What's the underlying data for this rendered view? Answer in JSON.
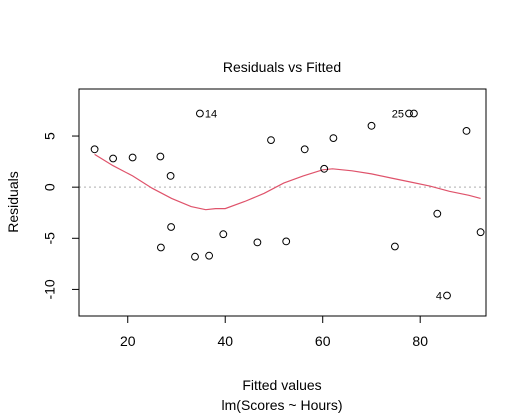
{
  "chart_data": {
    "type": "scatter",
    "title": "Residuals vs Fitted",
    "xlabel": "Fitted values",
    "subtitle": "lm(Scores ~ Hours)",
    "ylabel": "Residuals",
    "xlim": [
      10,
      93.5
    ],
    "ylim": [
      -12.6,
      9.6
    ],
    "x_ticks": [
      20,
      40,
      60,
      80
    ],
    "y_ticks": [
      -10,
      -5,
      0,
      5
    ],
    "grid": false,
    "legend": "none",
    "colors": {
      "points": "#000000",
      "smooth": "#DF536B",
      "reference": "#BEBEBE"
    },
    "points": [
      {
        "x": 13.2,
        "y": 3.7
      },
      {
        "x": 17.0,
        "y": 2.8
      },
      {
        "x": 21.0,
        "y": 2.9
      },
      {
        "x": 26.7,
        "y": 3.0
      },
      {
        "x": 26.8,
        "y": -5.9
      },
      {
        "x": 28.8,
        "y": 1.1
      },
      {
        "x": 28.9,
        "y": -3.9
      },
      {
        "x": 33.8,
        "y": -6.8
      },
      {
        "x": 34.8,
        "y": 7.2
      },
      {
        "x": 36.7,
        "y": -6.7
      },
      {
        "x": 39.6,
        "y": -4.6
      },
      {
        "x": 46.6,
        "y": -5.4
      },
      {
        "x": 49.4,
        "y": 4.6
      },
      {
        "x": 52.5,
        "y": -5.3
      },
      {
        "x": 56.3,
        "y": 3.7
      },
      {
        "x": 60.3,
        "y": 1.8
      },
      {
        "x": 62.2,
        "y": 4.8
      },
      {
        "x": 70.0,
        "y": 6.0
      },
      {
        "x": 74.8,
        "y": -5.8
      },
      {
        "x": 77.7,
        "y": 7.2
      },
      {
        "x": 78.7,
        "y": 7.2
      },
      {
        "x": 83.5,
        "y": -2.6
      },
      {
        "x": 85.5,
        "y": -10.6
      },
      {
        "x": 89.5,
        "y": 5.5
      },
      {
        "x": 92.4,
        "y": -4.4
      }
    ],
    "smooth_line": {
      "x": [
        13.2,
        17,
        21,
        25,
        29,
        33,
        36,
        38,
        40,
        44,
        48,
        52,
        56,
        60,
        62,
        66,
        70,
        74,
        78,
        82,
        86,
        90,
        92.4
      ],
      "y": [
        3.2,
        2.1,
        1.1,
        -0.1,
        -1.1,
        -1.9,
        -2.2,
        -2.1,
        -2.1,
        -1.4,
        -0.6,
        0.4,
        1.1,
        1.7,
        1.8,
        1.6,
        1.3,
        0.9,
        0.5,
        0.1,
        -0.4,
        -0.8,
        -1.1
      ]
    },
    "reference_line": {
      "y": 0
    },
    "point_labels": [
      {
        "text": "14",
        "x": 34.8,
        "y": 7.2,
        "side": "right"
      },
      {
        "text": "25",
        "x": 77.7,
        "y": 7.2,
        "side": "left"
      },
      {
        "text": "4",
        "x": 85.5,
        "y": -10.6,
        "side": "left"
      }
    ]
  }
}
